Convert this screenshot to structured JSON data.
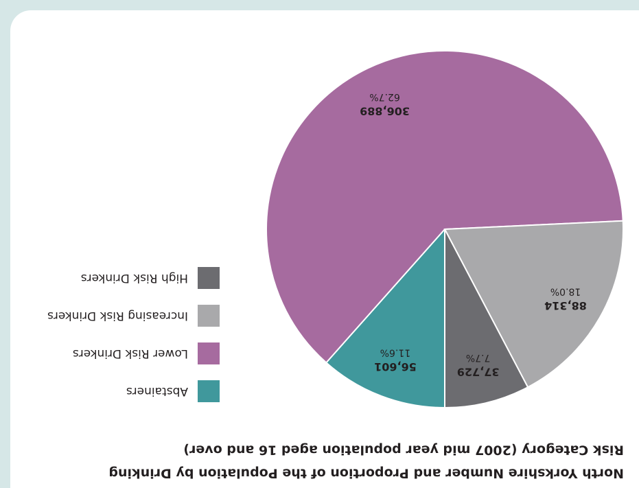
{
  "chart_data": {
    "type": "pie",
    "title": [
      "North Yorkshire Number and Proportion of the Population by Drinking",
      "Risk Category (2007 mid year population aged 16 and over)"
    ],
    "categories": [
      "Abstainers",
      "Lower Risk Drinkers",
      "Increasing Risk Drinkers",
      "High Risk Drinkers"
    ],
    "values": [
      56601,
      306889,
      88314,
      37729
    ],
    "value_labels": [
      "56,601",
      "306,889",
      "88,314",
      "37,729"
    ],
    "percentages": [
      11.6,
      62.7,
      18.0,
      7.7
    ],
    "percentage_labels": [
      "11.6%",
      "62.7%",
      "18.0%",
      "7.7%"
    ],
    "colors": [
      "#40989c",
      "#a66b9f",
      "#a9a9ab",
      "#6c6c70"
    ],
    "legend": "right"
  }
}
